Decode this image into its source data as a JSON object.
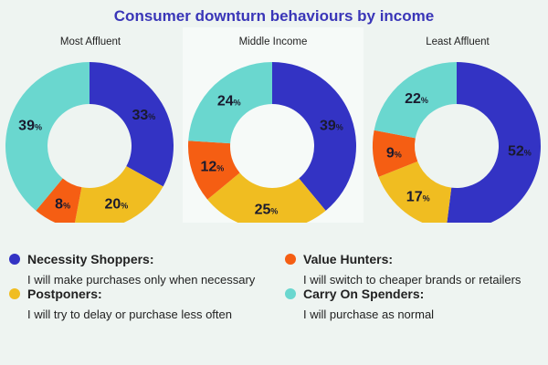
{
  "chart_data": {
    "type": "pie",
    "title": "Consumer downturn behaviours by income",
    "title_color": "#3a36b8",
    "donut": true,
    "categories": [
      "Necessity Shoppers",
      "Postponers",
      "Value Hunters",
      "Carry On Spenders"
    ],
    "colors": {
      "Necessity Shoppers": "#3333c4",
      "Postponers": "#f0bd21",
      "Value Hunters": "#f55e13",
      "Carry On Spenders": "#6ad7cf"
    },
    "unit": "%",
    "charts": [
      {
        "name": "Most Affluent",
        "values": {
          "Necessity Shoppers": 33,
          "Postponers": 20,
          "Value Hunters": 8,
          "Carry On Spenders": 39
        }
      },
      {
        "name": "Middle Income",
        "values": {
          "Necessity Shoppers": 39,
          "Postponers": 25,
          "Value Hunters": 12,
          "Carry On Spenders": 24
        }
      },
      {
        "name": "Least Affluent",
        "values": {
          "Necessity Shoppers": 52,
          "Postponers": 17,
          "Value Hunters": 9,
          "Carry On Spenders": 22
        }
      }
    ],
    "legend": [
      {
        "name": "Necessity Shoppers:",
        "desc": "I will make purchases only when necessary",
        "key": "Necessity Shoppers"
      },
      {
        "name": "Value Hunters:",
        "desc": "I will switch to cheaper brands or retailers",
        "key": "Value Hunters"
      },
      {
        "name": "Postponers:",
        "desc": "I will try to delay or purchase less often",
        "key": "Postponers"
      },
      {
        "name": "Carry On Spenders:",
        "desc": "I will purchase as normal",
        "key": "Carry On Spenders"
      }
    ],
    "legend_placement": "bottom"
  }
}
